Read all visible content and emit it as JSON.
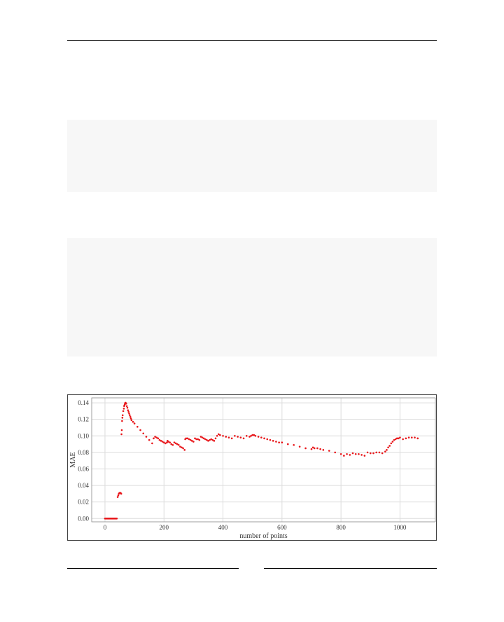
{
  "chart_data": {
    "type": "scatter",
    "xlabel": "number of points",
    "ylabel": "MAE",
    "xlim": [
      -45,
      1120
    ],
    "ylim": [
      -0.004,
      0.146
    ],
    "xticks": [
      0,
      200,
      400,
      600,
      800,
      1000
    ],
    "yticks": [
      0.0,
      0.02,
      0.04,
      0.06,
      0.08,
      0.1,
      0.12,
      0.14
    ],
    "xtick_labels": [
      "0",
      "200",
      "400",
      "600",
      "800",
      "1000"
    ],
    "ytick_labels": [
      "0.00",
      "0.02",
      "0.04",
      "0.06",
      "0.08",
      "0.10",
      "0.12",
      "0.14"
    ],
    "grid": true,
    "marker_color": "#e8171b",
    "series": [
      {
        "x": [
          0,
          2,
          4,
          6,
          8,
          10,
          12,
          14,
          16,
          18,
          20,
          22,
          24,
          26,
          28,
          30,
          32,
          34,
          36,
          38,
          40,
          43,
          45,
          47,
          49,
          51,
          53,
          55,
          56,
          57,
          58,
          59,
          60,
          62,
          64,
          65,
          66,
          67,
          68,
          69,
          70,
          72,
          74,
          76,
          78,
          80,
          82,
          84,
          86,
          88,
          90,
          95,
          100,
          110,
          120,
          130,
          140,
          150,
          160,
          165,
          170,
          175,
          180,
          185,
          190,
          195,
          200,
          205,
          210,
          212,
          215,
          220,
          225,
          230,
          235,
          240,
          245,
          250,
          255,
          260,
          265,
          270,
          272,
          275,
          280,
          285,
          290,
          295,
          300,
          305,
          310,
          315,
          320,
          325,
          330,
          335,
          340,
          345,
          350,
          355,
          360,
          365,
          370,
          375,
          380,
          385,
          390,
          400,
          410,
          420,
          430,
          440,
          450,
          460,
          470,
          480,
          490,
          495,
          500,
          505,
          510,
          520,
          530,
          540,
          550,
          560,
          570,
          580,
          590,
          600,
          620,
          640,
          660,
          680,
          700,
          705,
          710,
          720,
          730,
          740,
          760,
          780,
          800,
          810,
          820,
          830,
          840,
          850,
          860,
          870,
          880,
          890,
          900,
          910,
          920,
          930,
          940,
          950,
          955,
          960,
          965,
          970,
          975,
          980,
          985,
          990,
          995,
          1000,
          1010,
          1020,
          1030,
          1040,
          1050,
          1060
        ],
        "y": [
          0.0,
          0.0,
          0.0,
          0.0,
          0.0,
          0.0,
          0.0,
          0.0,
          0.0,
          0.0,
          0.0,
          0.0,
          0.0,
          0.0,
          0.0,
          0.0,
          0.0,
          0.0,
          0.0,
          0.0,
          0.0,
          0.026,
          0.028,
          0.03,
          0.031,
          0.031,
          0.031,
          0.03,
          0.102,
          0.107,
          0.118,
          0.122,
          0.125,
          0.13,
          0.133,
          0.136,
          0.137,
          0.138,
          0.139,
          0.14,
          0.14,
          0.139,
          0.136,
          0.134,
          0.131,
          0.129,
          0.127,
          0.125,
          0.123,
          0.121,
          0.119,
          0.117,
          0.115,
          0.111,
          0.107,
          0.103,
          0.099,
          0.095,
          0.091,
          0.097,
          0.099,
          0.098,
          0.097,
          0.095,
          0.094,
          0.093,
          0.092,
          0.091,
          0.092,
          0.094,
          0.093,
          0.092,
          0.09,
          0.089,
          0.092,
          0.091,
          0.09,
          0.089,
          0.087,
          0.086,
          0.085,
          0.083,
          0.096,
          0.097,
          0.097,
          0.096,
          0.095,
          0.094,
          0.093,
          0.097,
          0.096,
          0.096,
          0.095,
          0.099,
          0.098,
          0.097,
          0.096,
          0.095,
          0.094,
          0.095,
          0.096,
          0.095,
          0.094,
          0.097,
          0.1,
          0.102,
          0.101,
          0.1,
          0.099,
          0.098,
          0.097,
          0.1,
          0.099,
          0.098,
          0.097,
          0.1,
          0.099,
          0.1,
          0.101,
          0.101,
          0.1,
          0.099,
          0.098,
          0.097,
          0.096,
          0.095,
          0.094,
          0.093,
          0.092,
          0.092,
          0.09,
          0.089,
          0.087,
          0.085,
          0.084,
          0.086,
          0.085,
          0.085,
          0.084,
          0.083,
          0.082,
          0.08,
          0.078,
          0.076,
          0.078,
          0.077,
          0.079,
          0.078,
          0.078,
          0.077,
          0.076,
          0.08,
          0.079,
          0.079,
          0.08,
          0.08,
          0.079,
          0.081,
          0.083,
          0.086,
          0.088,
          0.091,
          0.093,
          0.095,
          0.096,
          0.097,
          0.097,
          0.098,
          0.096,
          0.097,
          0.098,
          0.098,
          0.098,
          0.097
        ]
      }
    ]
  }
}
